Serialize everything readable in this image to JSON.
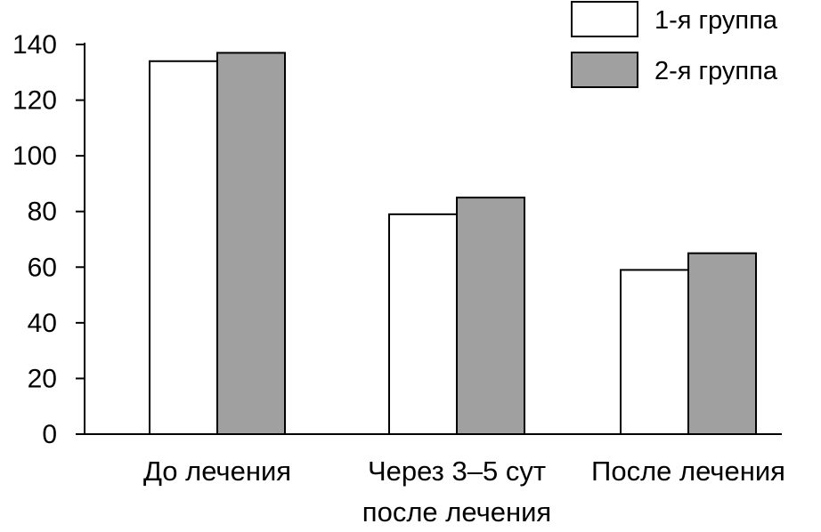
{
  "chart_data": {
    "type": "bar",
    "title": "",
    "xlabel": "",
    "ylabel": "",
    "categories": [
      [
        "До лечения"
      ],
      [
        "Через 3–5 сут",
        "после лечения"
      ],
      [
        "После лечения"
      ]
    ],
    "series": [
      {
        "name": "1-я группа",
        "values": [
          134,
          79,
          59
        ],
        "color": "#ffffff"
      },
      {
        "name": "2-я группа",
        "values": [
          137,
          85,
          65
        ],
        "color": "#a0a0a0"
      }
    ],
    "yticks": [
      0,
      20,
      40,
      60,
      80,
      100,
      120,
      140
    ],
    "ylim": [
      0,
      140
    ],
    "grid": false,
    "legend_position": "top-right"
  }
}
